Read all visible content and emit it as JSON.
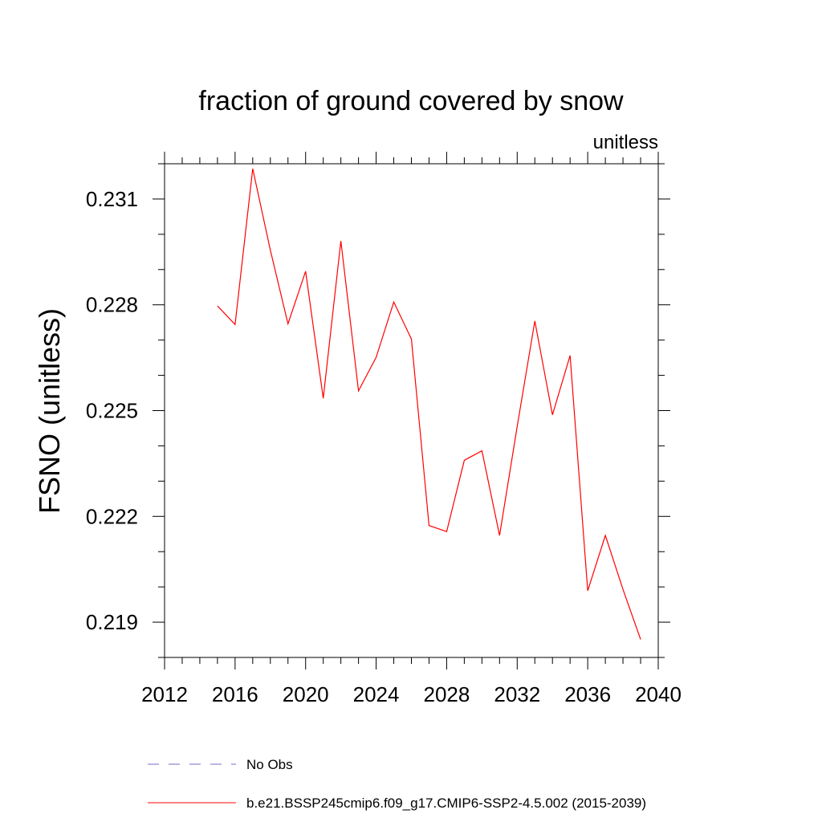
{
  "chart_data": {
    "type": "line",
    "title": "fraction of ground covered by snow",
    "units": "unitless",
    "xlabel": "",
    "ylabel": "FSNO  (unitless)",
    "xlim": [
      2012,
      2040
    ],
    "ylim": [
      0.218,
      0.232
    ],
    "x_ticks": [
      2012,
      2016,
      2020,
      2024,
      2028,
      2032,
      2036,
      2040
    ],
    "x_tick_labels": [
      "2012",
      "2016",
      "2020",
      "2024",
      "2028",
      "2032",
      "2036",
      "2040"
    ],
    "x_minor_step": 1,
    "y_ticks": [
      0.219,
      0.222,
      0.225,
      0.228,
      0.231
    ],
    "y_tick_labels": [
      "0.219",
      "0.222",
      "0.225",
      "0.228",
      "0.231"
    ],
    "y_minor_step": 0.001,
    "grid": false,
    "legend_placement": "below",
    "series": [
      {
        "name": "b.e21.BSSP245cmip6.f09_g17.CMIP6-SSP2-4.5.002 (2015-2039)",
        "color": "#ff0000",
        "style": "solid",
        "x": [
          2015,
          2016,
          2017,
          2018,
          2019,
          2020,
          2021,
          2022,
          2023,
          2024,
          2025,
          2026,
          2027,
          2028,
          2029,
          2030,
          2031,
          2032,
          2033,
          2034,
          2035,
          2036,
          2037,
          2038,
          2039
        ],
        "y": [
          0.22797,
          0.22744,
          0.23186,
          0.22955,
          0.22746,
          0.22895,
          0.22535,
          0.22981,
          0.22556,
          0.22651,
          0.22808,
          0.22703,
          0.22174,
          0.22157,
          0.22359,
          0.22386,
          0.22146,
          0.22455,
          0.22754,
          0.22488,
          0.22656,
          0.21989,
          0.22146,
          0.21993,
          0.21851
        ]
      }
    ],
    "legend": [
      {
        "label": "No Obs",
        "color": "#7b68c8",
        "style": "dashed"
      },
      {
        "label": "b.e21.BSSP245cmip6.f09_g17.CMIP6-SSP2-4.5.002 (2015-2039)",
        "color": "#ff0000",
        "style": "solid"
      }
    ]
  }
}
